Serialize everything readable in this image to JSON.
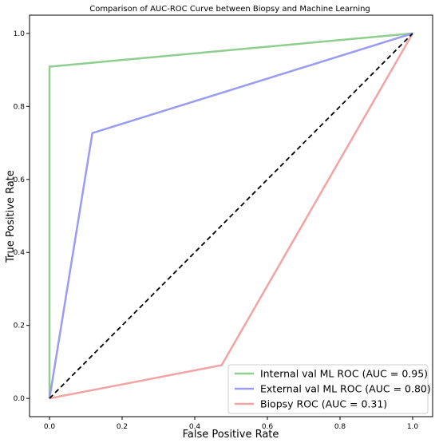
{
  "chart_data": {
    "type": "line",
    "title": "Comparison of AUC-ROC Curve between Biopsy and Machine Learning",
    "xlabel": "False Positive Rate",
    "ylabel": "True Positive Rate",
    "xlim": [
      -0.055,
      1.055
    ],
    "ylim": [
      -0.05,
      1.05
    ],
    "x_ticks": [
      0.0,
      0.2,
      0.4,
      0.6,
      0.8,
      1.0
    ],
    "y_ticks": [
      0.0,
      0.2,
      0.4,
      0.6,
      0.8,
      1.0
    ],
    "x_tick_labels": [
      "0.0",
      "0.2",
      "0.4",
      "0.6",
      "0.8",
      "1.0"
    ],
    "y_tick_labels": [
      "0.0",
      "0.2",
      "0.4",
      "0.6",
      "0.8",
      "1.0"
    ],
    "grid": false,
    "legend_position": "lower-right",
    "series": [
      {
        "name": "Internal val ML ROC (AUC = 0.95)",
        "color": "#8fce8f",
        "x": [
          0.0,
          0.0,
          1.0
        ],
        "y": [
          0.0,
          0.909,
          1.0
        ]
      },
      {
        "name": "External val ML ROC (AUC = 0.80)",
        "color": "#9b9bf2",
        "x": [
          0.0,
          0.118,
          1.0
        ],
        "y": [
          0.0,
          0.727,
          1.0
        ]
      },
      {
        "name": "Biopsy ROC (AUC = 0.31)",
        "color": "#f3a3a3",
        "x": [
          0.0,
          0.474,
          1.0
        ],
        "y": [
          0.0,
          0.091,
          1.0
        ]
      }
    ],
    "reference_line": {
      "x": [
        0.0,
        1.0
      ],
      "y": [
        0.0,
        1.0
      ],
      "color": "#000000",
      "style": "dashed"
    }
  }
}
